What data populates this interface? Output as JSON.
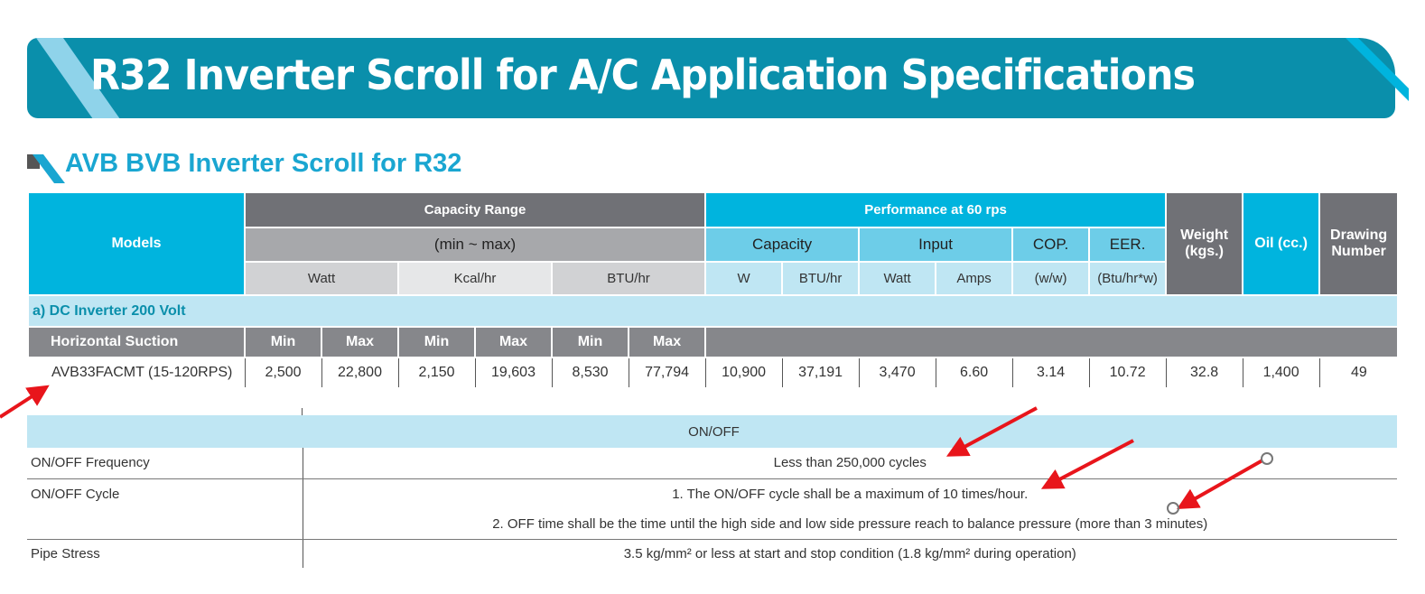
{
  "title": "R32 Inverter Scroll for A/C Application Specifications",
  "subtitle": "AVB BVB Inverter Scroll for R32",
  "header": {
    "models": "Models",
    "capacity_range": "Capacity Range",
    "min_max": "(min ~ max)",
    "watt": "Watt",
    "kcal": "Kcal/hr",
    "btu": "BTU/hr",
    "performance": "Performance at 60 rps",
    "capacity": "Capacity",
    "input": "Input",
    "cop": "COP.",
    "eer": "EER.",
    "w": "W",
    "btu_hr": "BTU/hr",
    "input_watt": "Watt",
    "amps": "Amps",
    "cop_unit": "(w/w)",
    "eer_unit": "(Btu/hr*w)",
    "weight": "Weight (kgs.)",
    "oil": "Oil (cc.)",
    "drawing": "Drawing Number"
  },
  "section": "a) DC Inverter 200 Volt",
  "subheader": {
    "label": "Horizontal Suction",
    "cols": [
      "Min",
      "Max",
      "Min",
      "Max",
      "Min",
      "Max"
    ]
  },
  "row": {
    "model": "AVB33FACMT (15-120RPS)",
    "values": [
      "2,500",
      "22,800",
      "2,150",
      "19,603",
      "8,530",
      "77,794",
      "10,900",
      "37,191",
      "3,470",
      "6.60",
      "3.14",
      "10.72",
      "32.8",
      "1,400",
      "49"
    ]
  },
  "onoff": {
    "title": "ON/OFF",
    "freq_label": "ON/OFF Frequency",
    "freq_value": "Less than 250,000 cycles",
    "cycle_label": "ON/OFF Cycle",
    "cycle_1": "1. The ON/OFF cycle shall be a maximum of 10 times/hour.",
    "cycle_2": "2. OFF time shall be the time until the high side and low side pressure reach to balance pressure (more than 3 minutes)",
    "pipe_label": "Pipe Stress",
    "pipe_value": "3.5 kg/mm² or less at start and stop condition (1.8 kg/mm² during operation)"
  },
  "colors": {
    "banner": "#0a8fab",
    "cyan": "#00b4de",
    "dark_gray": "#707176",
    "annotation": "#e8151b"
  }
}
